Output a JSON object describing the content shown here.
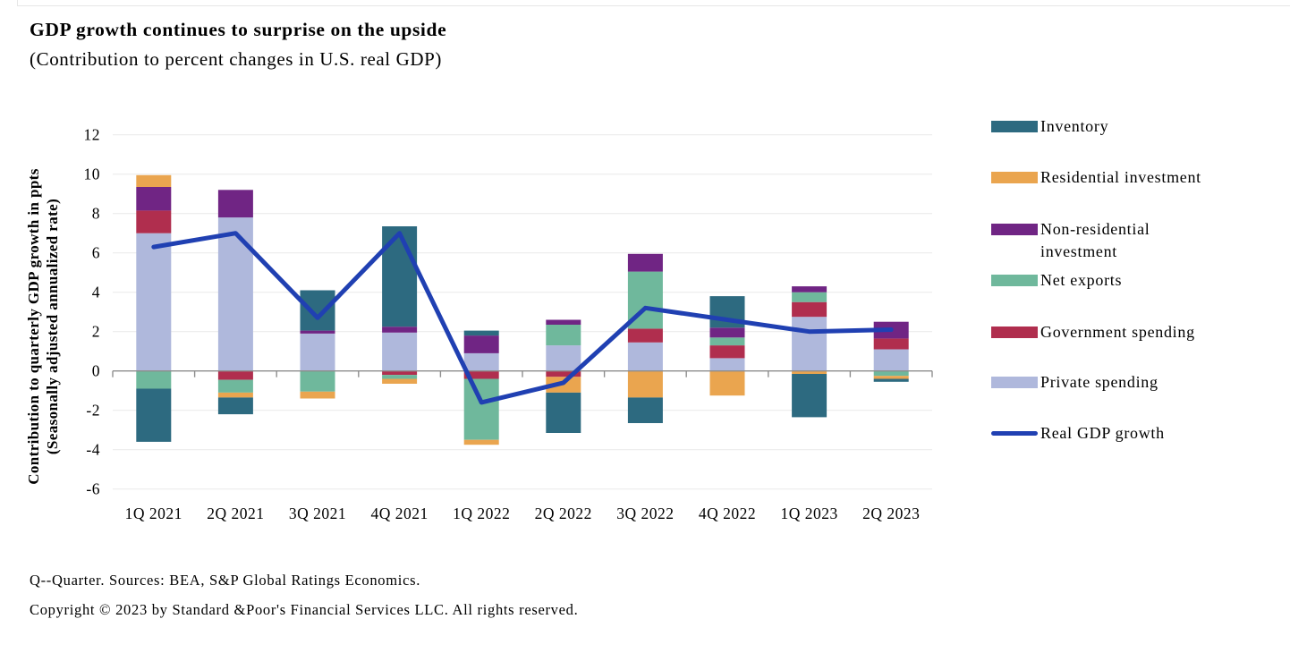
{
  "header": {
    "title": "GDP growth continues to surprise on the upside",
    "subtitle": "(Contribution to percent changes in U.S. real GDP)"
  },
  "chart_data": {
    "type": "stacked_bar_with_line",
    "title": "GDP growth continues to surprise on the upside",
    "subtitle": "(Contribution to percent changes in U.S. real GDP)",
    "xlabel": "",
    "ylabel": "Contribution to quarterly GDP growth in ppts (Seasonally adjusted annualized rate)",
    "ylabel_lines": [
      "Contribution to quarterly GDP growth in ppts",
      "(Seasonally adjusted annualized rate)"
    ],
    "ylim": [
      -6,
      12
    ],
    "yticks": [
      12,
      10,
      8,
      6,
      4,
      2,
      0,
      -2,
      -4,
      -6
    ],
    "grid": "horizontal",
    "legend_position": "right",
    "categories": [
      "1Q 2021",
      "2Q 2021",
      "3Q 2021",
      "4Q 2021",
      "1Q 2022",
      "2Q 2022",
      "3Q 2022",
      "4Q 2022",
      "1Q 2023",
      "2Q 2023"
    ],
    "series": [
      {
        "name": "Private spending",
        "color": "#afb8dc",
        "values": [
          7.0,
          7.8,
          1.9,
          1.95,
          0.9,
          1.3,
          1.45,
          0.65,
          2.75,
          1.1
        ]
      },
      {
        "name": "Government spending",
        "color": "#b02e4e",
        "values": [
          1.15,
          -0.45,
          0.0,
          -0.2,
          -0.4,
          -0.3,
          0.7,
          0.65,
          0.75,
          0.55
        ]
      },
      {
        "name": "Net exports",
        "color": "#6fb89c",
        "values": [
          -0.9,
          -0.65,
          -1.05,
          -0.2,
          -3.1,
          1.05,
          2.9,
          0.4,
          0.5,
          -0.25
        ]
      },
      {
        "name": "Non-residential investment",
        "color": "#702584",
        "values": [
          1.2,
          1.4,
          0.15,
          0.3,
          0.9,
          0.25,
          0.9,
          0.5,
          0.3,
          0.85
        ]
      },
      {
        "name": "Residential investment",
        "color": "#eaa54f",
        "values": [
          0.6,
          -0.25,
          -0.35,
          -0.25,
          -0.25,
          -0.8,
          -1.35,
          -1.25,
          -0.15,
          -0.15
        ]
      },
      {
        "name": "Inventory",
        "color": "#2d6a80",
        "values": [
          -2.7,
          -0.85,
          2.05,
          5.1,
          0.25,
          -2.05,
          -1.3,
          1.6,
          -2.2,
          -0.15
        ]
      }
    ],
    "line_series": {
      "name": "Real GDP growth",
      "color": "#2040b2",
      "values": [
        6.3,
        7.0,
        2.7,
        7.0,
        -1.6,
        -0.6,
        3.2,
        2.6,
        2.0,
        2.1
      ]
    },
    "colors": {
      "grid": "#ececec",
      "axis": "#8e8e8e"
    }
  },
  "legend": {
    "items": [
      {
        "label": "Inventory",
        "color": "#2d6a80",
        "type": "box"
      },
      {
        "label": "Residential investment",
        "color": "#eaa54f",
        "type": "box"
      },
      {
        "label": "Non-residential investment",
        "color": "#702584",
        "type": "box"
      },
      {
        "label": "Net exports",
        "color": "#6fb89c",
        "type": "box"
      },
      {
        "label": "Government spending",
        "color": "#b02e4e",
        "type": "box"
      },
      {
        "label": "Private spending",
        "color": "#afb8dc",
        "type": "box"
      },
      {
        "label": "Real GDP growth",
        "color": "#2040b2",
        "type": "line"
      }
    ]
  },
  "footer": {
    "line1": "Q--Quarter. Sources: BEA, S&P Global Ratings Economics.",
    "line2": "Copyright © 2023 by Standard &Poor's Financial Services LLC. All rights reserved."
  }
}
